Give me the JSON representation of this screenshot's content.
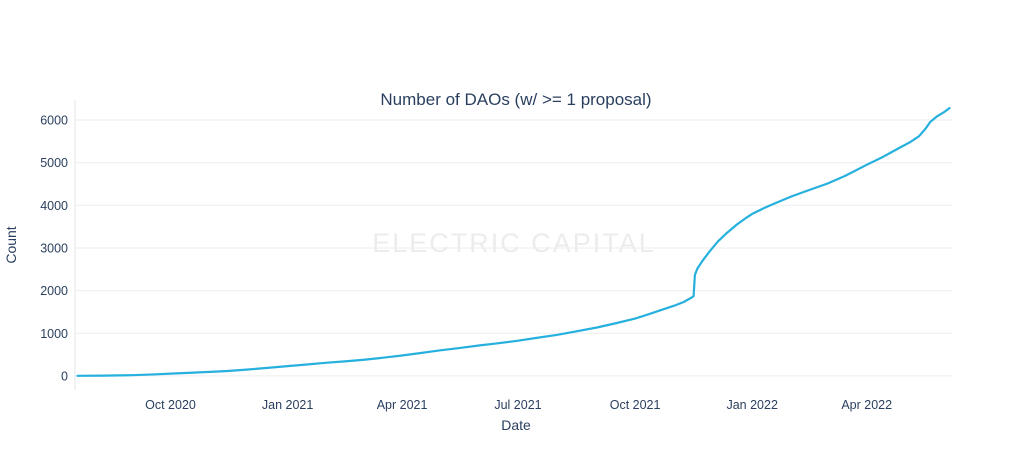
{
  "colors": {
    "text": "#2a3f5f",
    "grid": "#eceef1",
    "axis_line": "#e3e6ea",
    "watermark_color": "#ececec",
    "line_color": "#26b0de",
    "background": "#ffffff"
  },
  "watermark": "ELECTRIC CAPITAL",
  "chart_data": {
    "type": "line",
    "title": "Number of DAOs (w/ >= 1 proposal)",
    "xlabel": "Date",
    "ylabel": "Count",
    "grid": true,
    "legend": "none",
    "x_range": [
      "2020-07-18",
      "2022-06-07"
    ],
    "y_range": [
      -330,
      6470
    ],
    "x_ticks": [
      {
        "date": "2020-10-01",
        "label": "Oct 2020"
      },
      {
        "date": "2021-01-01",
        "label": "Jan 2021"
      },
      {
        "date": "2021-04-01",
        "label": "Apr 2021"
      },
      {
        "date": "2021-07-01",
        "label": "Jul 2021"
      },
      {
        "date": "2021-10-01",
        "label": "Oct 2021"
      },
      {
        "date": "2022-01-01",
        "label": "Jan 2022"
      },
      {
        "date": "2022-04-01",
        "label": "Apr 2022"
      }
    ],
    "y_ticks": [
      {
        "value": 0,
        "label": "0"
      },
      {
        "value": 1000,
        "label": "1000"
      },
      {
        "value": 2000,
        "label": "2000"
      },
      {
        "value": 3000,
        "label": "3000"
      },
      {
        "value": 4000,
        "label": "4000"
      },
      {
        "value": 5000,
        "label": "5000"
      },
      {
        "value": 6000,
        "label": "6000"
      }
    ],
    "points": [
      [
        "2020-07-20",
        3
      ],
      [
        "2020-08-10",
        8
      ],
      [
        "2020-09-01",
        18
      ],
      [
        "2020-09-20",
        38
      ],
      [
        "2020-10-01",
        55
      ],
      [
        "2020-10-15",
        70
      ],
      [
        "2020-11-01",
        95
      ],
      [
        "2020-11-15",
        115
      ],
      [
        "2020-12-01",
        150
      ],
      [
        "2020-12-15",
        185
      ],
      [
        "2021-01-01",
        230
      ],
      [
        "2021-01-15",
        265
      ],
      [
        "2021-02-01",
        310
      ],
      [
        "2021-02-15",
        340
      ],
      [
        "2021-03-01",
        375
      ],
      [
        "2021-03-15",
        420
      ],
      [
        "2021-04-01",
        480
      ],
      [
        "2021-04-15",
        535
      ],
      [
        "2021-05-01",
        600
      ],
      [
        "2021-05-15",
        650
      ],
      [
        "2021-06-01",
        715
      ],
      [
        "2021-06-15",
        765
      ],
      [
        "2021-07-01",
        825
      ],
      [
        "2021-07-15",
        890
      ],
      [
        "2021-08-01",
        965
      ],
      [
        "2021-08-15",
        1040
      ],
      [
        "2021-09-01",
        1135
      ],
      [
        "2021-09-15",
        1230
      ],
      [
        "2021-10-01",
        1345
      ],
      [
        "2021-10-10",
        1430
      ],
      [
        "2021-10-20",
        1530
      ],
      [
        "2021-11-01",
        1650
      ],
      [
        "2021-11-08",
        1730
      ],
      [
        "2021-11-14",
        1830
      ],
      [
        "2021-11-16",
        1870
      ],
      [
        "2021-11-17",
        2370
      ],
      [
        "2021-11-19",
        2520
      ],
      [
        "2021-11-23",
        2700
      ],
      [
        "2021-11-28",
        2900
      ],
      [
        "2021-12-05",
        3150
      ],
      [
        "2021-12-12",
        3350
      ],
      [
        "2021-12-20",
        3550
      ],
      [
        "2021-12-27",
        3700
      ],
      [
        "2022-01-01",
        3800
      ],
      [
        "2022-01-10",
        3930
      ],
      [
        "2022-01-20",
        4060
      ],
      [
        "2022-02-01",
        4210
      ],
      [
        "2022-02-14",
        4350
      ],
      [
        "2022-03-01",
        4510
      ],
      [
        "2022-03-15",
        4690
      ],
      [
        "2022-04-01",
        4950
      ],
      [
        "2022-04-14",
        5140
      ],
      [
        "2022-04-25",
        5320
      ],
      [
        "2022-05-05",
        5480
      ],
      [
        "2022-05-12",
        5620
      ],
      [
        "2022-05-17",
        5790
      ],
      [
        "2022-05-21",
        5960
      ],
      [
        "2022-05-26",
        6080
      ],
      [
        "2022-06-01",
        6190
      ],
      [
        "2022-06-05",
        6280
      ]
    ]
  }
}
